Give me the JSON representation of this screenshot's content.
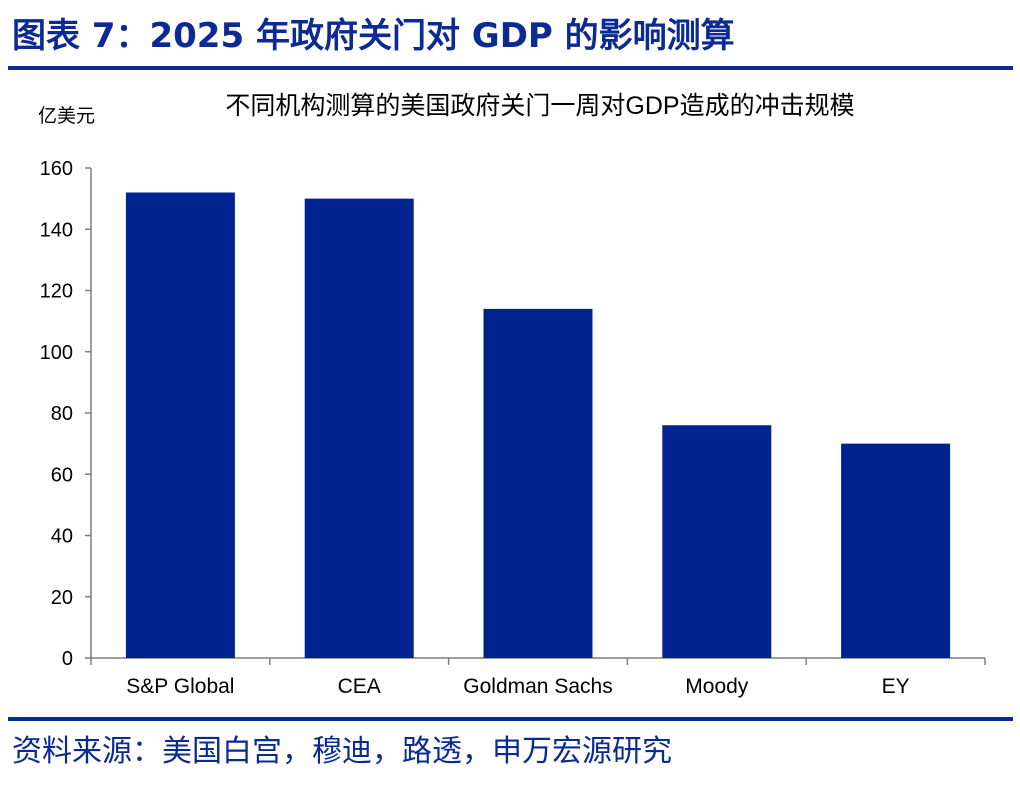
{
  "figure": {
    "title": "图表 7：2025 年政府关门对 GDP 的影响测算",
    "source": "资料来源：美国白宫，穆迪，路透，申万宏源研究"
  },
  "colors": {
    "accent": "#0b2a94",
    "bar": "#00238f",
    "axis": "#7f7f7f",
    "text": "#000000"
  },
  "chart_data": {
    "type": "bar",
    "title": "不同机构测算的美国政府关门一周对GDP造成的冲击规模",
    "ylabel": "亿美元",
    "xlabel": "",
    "categories": [
      "S&P Global",
      "CEA",
      "Goldman Sachs",
      "Moody",
      "EY"
    ],
    "values": [
      152,
      150,
      114,
      76,
      70
    ],
    "ylim": [
      0,
      160
    ],
    "yticks": [
      0,
      20,
      40,
      60,
      80,
      100,
      120,
      140,
      160
    ],
    "grid": false,
    "legend": "none"
  }
}
